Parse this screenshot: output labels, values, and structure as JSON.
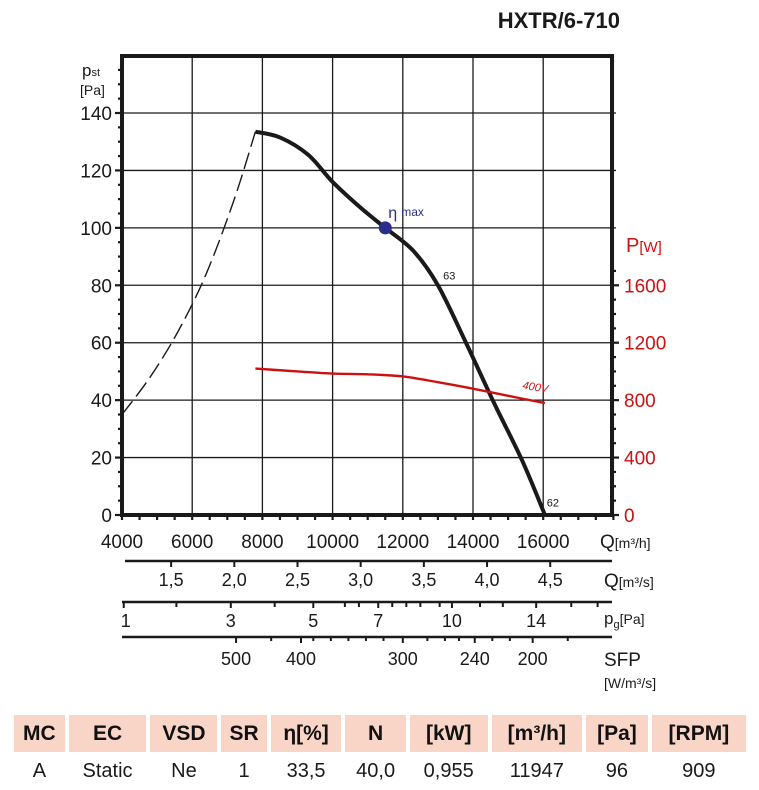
{
  "title": "HXTR/6-710",
  "chart_data": {
    "type": "line",
    "title": "HXTR/6-710",
    "xlabel": "Q[m³/h]",
    "ylabel": "pst [Pa]",
    "y2label": "P[W]",
    "xlim": [
      4000,
      18000
    ],
    "ylim": [
      0,
      160
    ],
    "y2lim": [
      0,
      3200
    ],
    "x_ticks": [
      "4000",
      "6000",
      "8000",
      "10000",
      "12000",
      "14000",
      "16000"
    ],
    "x_tick_values": [
      4000,
      6000,
      8000,
      10000,
      12000,
      14000,
      16000
    ],
    "y_ticks": [
      "0",
      "20",
      "40",
      "60",
      "80",
      "100",
      "120",
      "140"
    ],
    "y_tick_values": [
      0,
      20,
      40,
      60,
      80,
      100,
      120,
      140
    ],
    "y2_ticks": [
      "0",
      "400",
      "800",
      "1200",
      "1600"
    ],
    "y2_tick_values": [
      0,
      400,
      800,
      1200,
      1600
    ],
    "grid": true,
    "series": [
      {
        "name": "pressure-curve",
        "color": "#1a1a1a",
        "axis": "left",
        "x": [
          7800,
          8500,
          9300,
          10000,
          10800,
          11500,
          12300,
          13000,
          13800,
          14600,
          15400,
          16050
        ],
        "values": [
          133.5,
          131.5,
          125.5,
          116,
          107,
          100,
          92,
          80,
          60,
          39,
          19,
          0
        ]
      },
      {
        "name": "stall-line",
        "color": "#1a1a1a",
        "style": "dashed",
        "axis": "left",
        "x": [
          4000,
          4800,
          5600,
          6400,
          7200,
          7800
        ],
        "values": [
          35,
          48,
          64,
          84,
          110,
          133.5
        ]
      },
      {
        "name": "400V",
        "color": "#cc1111",
        "axis": "right",
        "x": [
          7800,
          9000,
          10000,
          11000,
          12000,
          13000,
          14000,
          15000,
          16050
        ],
        "values": [
          1020,
          1000,
          985,
          980,
          965,
          925,
          880,
          830,
          780
        ]
      }
    ],
    "point_labels": [
      {
        "text": "63",
        "x": 13150,
        "y": 82
      },
      {
        "text": "62",
        "x": 16100,
        "y": 3
      },
      {
        "text": "400V",
        "x": 15400,
        "y": 44
      }
    ],
    "eta_max": {
      "label_main": "η",
      "label_sub": "max",
      "x": 11500,
      "y": 100,
      "color": "#2b2d8a"
    },
    "secondary_axes": [
      {
        "name": "Q[m³/s]",
        "label_main": "Q",
        "label_unit": "[m³/s]",
        "ticks": [
          "1,5",
          "2,0",
          "2,5",
          "3,0",
          "3,5",
          "4,0",
          "4,5"
        ],
        "tick_q": [
          5400,
          7200,
          9000,
          10800,
          12600,
          14400,
          16200
        ]
      },
      {
        "name": "pg[Pa]",
        "label_main": "p",
        "label_sub": "g",
        "label_unit": "[Pa]",
        "ticks": [
          "1",
          "3",
          "5",
          "7",
          "10",
          "14"
        ],
        "tick_q": [
          4050,
          7100,
          9450,
          11300,
          13400,
          15800
        ],
        "minor_q": [
          5550,
          8350,
          10350,
          10750,
          11700,
          12100,
          12500,
          13050,
          14200,
          14850,
          16800,
          17550
        ]
      },
      {
        "name": "SFP",
        "label_main": "SFP",
        "label_unit": "[W/m³/s]",
        "ticks": [
          "500",
          "400",
          "300",
          "240",
          "200"
        ],
        "tick_q": [
          7250,
          9100,
          12000,
          14050,
          15700
        ],
        "minor_q": [
          8250,
          9450,
          9950,
          10450,
          10950,
          11450,
          12700,
          13200,
          13600,
          14550,
          15050,
          16700
        ]
      }
    ]
  },
  "table": {
    "headers": [
      "MC",
      "EC",
      "VSD",
      "SR",
      "η[%]",
      "N",
      "[kW]",
      "[m³/h]",
      "[Pa]",
      "[RPM]"
    ],
    "row": [
      "A",
      "Static",
      "Ne",
      "1",
      "33,5",
      "40,0",
      "0,955",
      "11947",
      "96",
      "909"
    ]
  },
  "colors": {
    "primary": "#1a1a1a",
    "power": "#cc1111",
    "eta": "#2b2d8a",
    "table_header": "#f9d5c8"
  }
}
